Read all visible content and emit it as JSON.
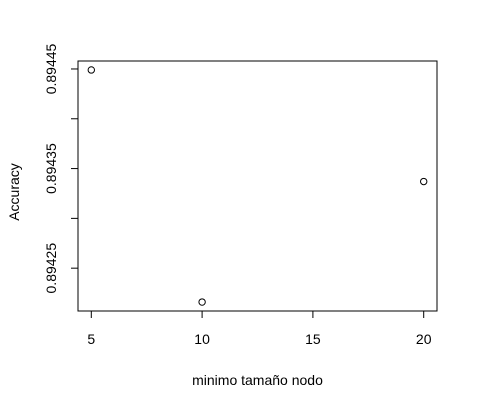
{
  "chart_data": {
    "type": "scatter",
    "title": "",
    "xlabel": "minimo tamaño nodo",
    "ylabel": "Accuracy",
    "points": [
      {
        "x": 5,
        "y": 0.894449
      },
      {
        "x": 10,
        "y": 0.894216
      },
      {
        "x": 20,
        "y": 0.894337
      }
    ],
    "xlim": [
      4.4,
      20.6
    ],
    "ylim": [
      0.894207,
      0.894458
    ],
    "x_ticks": [
      5,
      10,
      15,
      20
    ],
    "x_tick_labels": [
      "5",
      "10",
      "15",
      "20"
    ],
    "y_ticks": [
      0.89425,
      0.89435,
      0.89445
    ],
    "y_tick_labels": [
      "0.89425",
      "0.89435",
      "0.89445"
    ],
    "y_minor_ticks": [
      0.8943,
      0.8944
    ],
    "marker": "open-circle",
    "colors": {
      "axis": "#000000",
      "point": "#000000",
      "background": "#ffffff"
    },
    "grid": false,
    "legend": "none"
  }
}
